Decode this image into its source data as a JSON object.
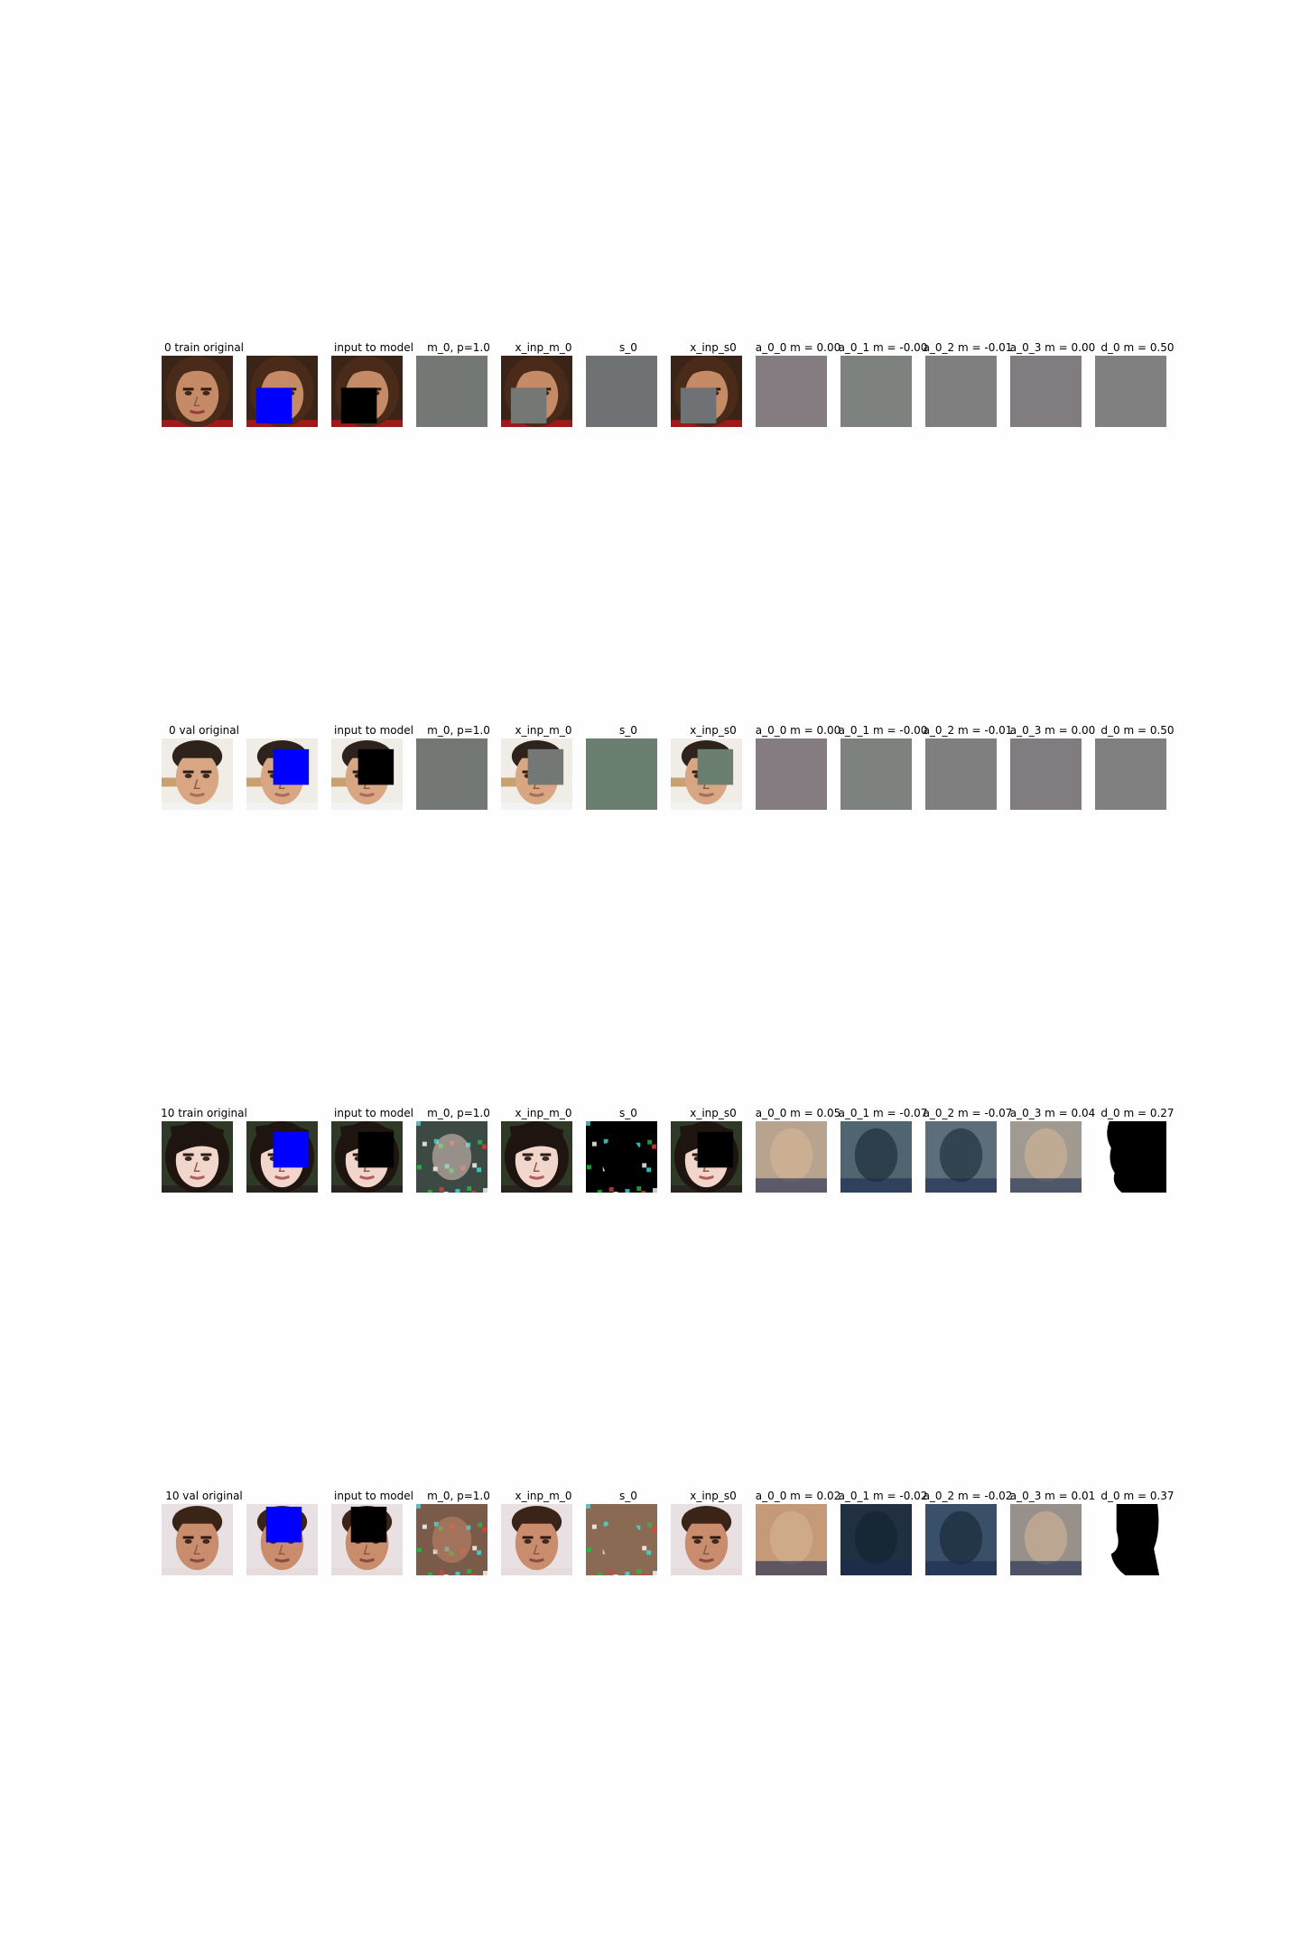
{
  "rows": [
    {
      "id": "row-0-train",
      "subject": "female-brown-hair",
      "labels": [
        "0 train  original",
        "",
        "input to model",
        "m_0, p=1.0",
        "x_inp_m_0",
        "s_0",
        "x_inp_s0",
        "a_0_0 m = 0.00",
        "a_0_1 m = -0.00",
        "a_0_2 m = -0.01",
        "a_0_3 m = 0.00",
        "d_0 m = 0.50"
      ],
      "mask": "lower",
      "stage": "early",
      "colors": {
        "m": "#737874",
        "s": "#6e7275",
        "a0": "#857c82",
        "a1": "#7d827f",
        "a2": "#7f7f7f",
        "a3": "#807c80",
        "d": "#808080"
      }
    },
    {
      "id": "row-0-val",
      "subject": "male-dark-hair",
      "labels": [
        "0 val  original",
        "",
        "input to model",
        "m_0, p=1.0",
        "x_inp_m_0",
        "s_0",
        "x_inp_s0",
        "a_0_0 m = 0.00",
        "a_0_1 m = -0.00",
        "a_0_2 m = -0.01",
        "a_0_3 m = 0.00",
        "d_0 m = 0.50"
      ],
      "mask": "upper-right",
      "stage": "early",
      "colors": {
        "m": "#737874",
        "s": "#6b7f70",
        "a0": "#857c82",
        "a1": "#7d827f",
        "a2": "#7f7f7f",
        "a3": "#807c80",
        "d": "#808080"
      }
    },
    {
      "id": "row-10-train",
      "subject": "female-fringe",
      "labels": [
        "10 train  original",
        "",
        "input to model",
        "m_0, p=1.0",
        "x_inp_m_0",
        "s_0",
        "x_inp_s0",
        "a_0_0 m = 0.05",
        "a_0_1 m = -0.07",
        "a_0_2 m = -0.07",
        "a_0_3 m = 0.04",
        "d_0 m = 0.27"
      ],
      "mask": "upper-right",
      "stage": "late",
      "colors": {
        "m": "#3d4a44",
        "s": "#000000",
        "a0": "#b8a48e",
        "a1": "#4f6570",
        "a2": "#5d6e7a",
        "a3": "#a09a90",
        "d": "#ffffff"
      }
    },
    {
      "id": "row-10-val",
      "subject": "male-short-hair",
      "labels": [
        "10 val  original",
        "",
        "input to model",
        "m_0, p=1.0",
        "x_inp_m_0",
        "s_0",
        "x_inp_s0",
        "a_0_0 m = 0.02",
        "a_0_1 m = -0.02",
        "a_0_2 m = -0.02",
        "a_0_3 m = 0.01",
        "d_0 m = 0.37"
      ],
      "mask": "top",
      "stage": "late",
      "colors": {
        "m": "#7a5a48",
        "s": "#8a6a52",
        "a0": "#c49a78",
        "a1": "#203040",
        "a2": "#3a5068",
        "a3": "#98908a",
        "d": "#ffffff"
      }
    }
  ]
}
